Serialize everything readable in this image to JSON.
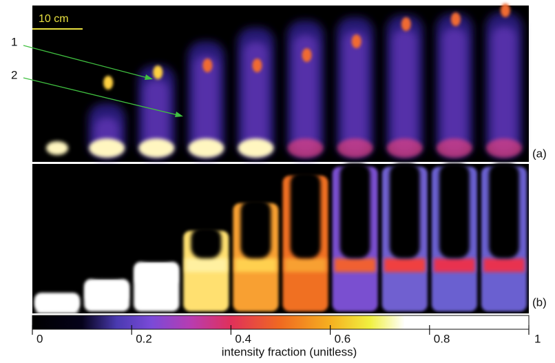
{
  "scale_bar": "10 cm",
  "arrows": [
    "1",
    "2"
  ],
  "panels": [
    "(a)",
    "(b)"
  ],
  "colorbar": {
    "label": "intensity fraction (unitless)",
    "range": [
      0,
      1
    ],
    "ticks": [
      0,
      0.2,
      0.4,
      0.6,
      0.8,
      1
    ]
  }
}
